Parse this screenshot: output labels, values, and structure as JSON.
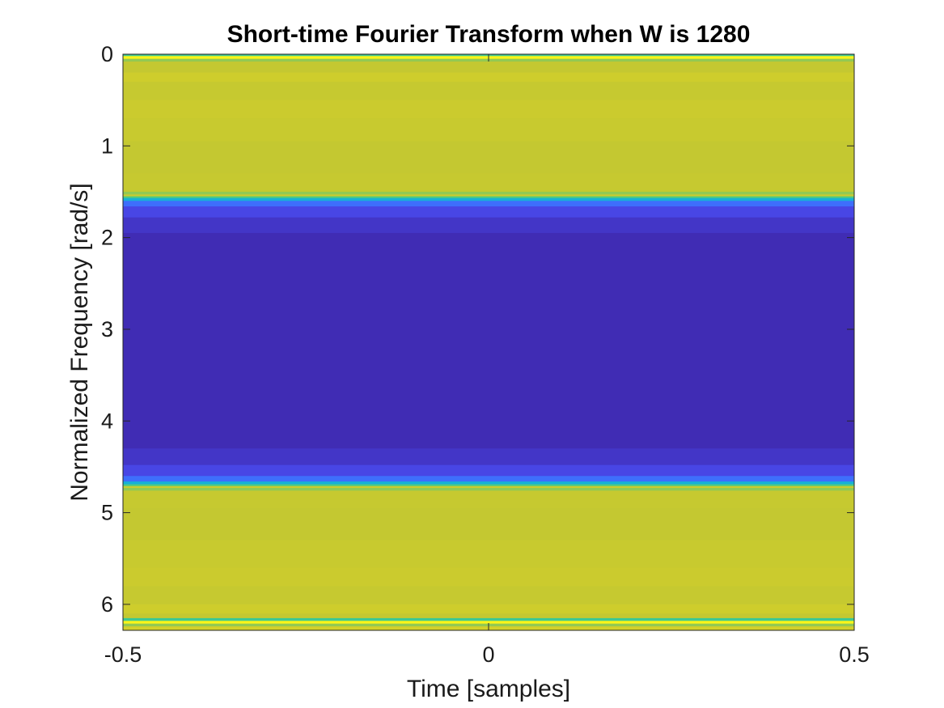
{
  "chart_data": {
    "type": "heatmap",
    "title": "Short-time Fourier Transform when W is 1280",
    "xlabel": "Time [samples]",
    "ylabel": "Normalized Frequency [rad/s]",
    "xlim": [
      -0.5,
      0.5
    ],
    "ylim": [
      0,
      6.2832
    ],
    "y_direction": "reversed",
    "colormap": "parula",
    "grid": false,
    "legend": "none",
    "xticks": [
      -0.5,
      0,
      0.5
    ],
    "xtick_labels": [
      "-0.5",
      "0",
      "0.5"
    ],
    "yticks": [
      0,
      1,
      2,
      3,
      4,
      5,
      6
    ],
    "ytick_labels": [
      "0",
      "1",
      "2",
      "3",
      "4",
      "5",
      "6"
    ],
    "rows": [
      {
        "from": 0.0,
        "to": 0.02,
        "intensity": 0.6
      },
      {
        "from": 0.02,
        "to": 0.05,
        "intensity": 0.99
      },
      {
        "from": 0.05,
        "to": 0.08,
        "intensity": 0.72
      },
      {
        "from": 0.08,
        "to": 0.2,
        "intensity": 0.86
      },
      {
        "from": 0.2,
        "to": 0.3,
        "intensity": 0.92
      },
      {
        "from": 0.3,
        "to": 0.5,
        "intensity": 0.87
      },
      {
        "from": 0.5,
        "to": 0.7,
        "intensity": 0.9
      },
      {
        "from": 0.7,
        "to": 0.95,
        "intensity": 0.88
      },
      {
        "from": 0.95,
        "to": 1.3,
        "intensity": 0.86
      },
      {
        "from": 1.3,
        "to": 1.5,
        "intensity": 0.87
      },
      {
        "from": 1.5,
        "to": 1.53,
        "intensity": 0.72
      },
      {
        "from": 1.53,
        "to": 1.55,
        "intensity": 0.9
      },
      {
        "from": 1.55,
        "to": 1.57,
        "intensity": 0.62
      },
      {
        "from": 1.57,
        "to": 1.6,
        "intensity": 0.4
      },
      {
        "from": 1.6,
        "to": 1.66,
        "intensity": 0.2
      },
      {
        "from": 1.66,
        "to": 1.78,
        "intensity": 0.1
      },
      {
        "from": 1.78,
        "to": 1.95,
        "intensity": 0.05
      },
      {
        "from": 1.95,
        "to": 4.3,
        "intensity": 0.02
      },
      {
        "from": 4.3,
        "to": 4.48,
        "intensity": 0.05
      },
      {
        "from": 4.48,
        "to": 4.6,
        "intensity": 0.1
      },
      {
        "from": 4.6,
        "to": 4.66,
        "intensity": 0.2
      },
      {
        "from": 4.66,
        "to": 4.69,
        "intensity": 0.4
      },
      {
        "from": 4.69,
        "to": 4.71,
        "intensity": 0.62
      },
      {
        "from": 4.71,
        "to": 4.73,
        "intensity": 0.9
      },
      {
        "from": 4.73,
        "to": 4.76,
        "intensity": 0.72
      },
      {
        "from": 4.76,
        "to": 4.95,
        "intensity": 0.87
      },
      {
        "from": 4.95,
        "to": 5.3,
        "intensity": 0.86
      },
      {
        "from": 5.3,
        "to": 5.6,
        "intensity": 0.88
      },
      {
        "from": 5.6,
        "to": 5.8,
        "intensity": 0.9
      },
      {
        "from": 5.8,
        "to": 6.0,
        "intensity": 0.87
      },
      {
        "from": 6.0,
        "to": 6.1,
        "intensity": 0.92
      },
      {
        "from": 6.1,
        "to": 6.15,
        "intensity": 0.86
      },
      {
        "from": 6.15,
        "to": 6.18,
        "intensity": 0.6
      },
      {
        "from": 6.18,
        "to": 6.21,
        "intensity": 0.99
      },
      {
        "from": 6.21,
        "to": 6.24,
        "intensity": 0.72
      },
      {
        "from": 6.24,
        "to": 6.2832,
        "intensity": 0.95
      }
    ]
  }
}
